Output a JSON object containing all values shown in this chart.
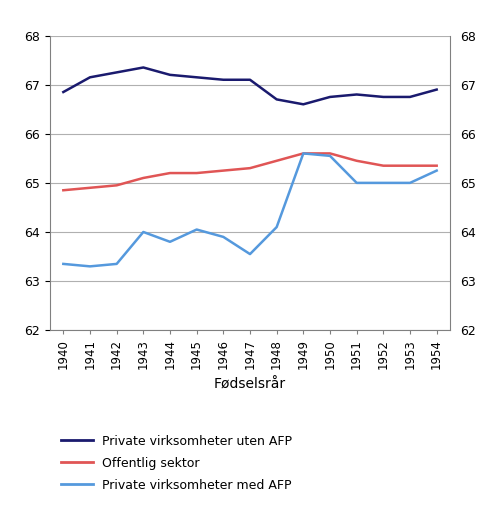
{
  "years": [
    1940,
    1941,
    1942,
    1943,
    1944,
    1945,
    1946,
    1947,
    1948,
    1949,
    1950,
    1951,
    1952,
    1953,
    1954
  ],
  "private_uten_afp": [
    66.85,
    67.15,
    67.25,
    67.35,
    67.2,
    67.15,
    67.1,
    67.1,
    66.7,
    66.6,
    66.75,
    66.8,
    66.75,
    66.75,
    66.9
  ],
  "offentlig_sektor": [
    64.85,
    64.9,
    64.95,
    65.1,
    65.2,
    65.2,
    65.25,
    65.3,
    65.45,
    65.6,
    65.6,
    65.45,
    65.35,
    65.35,
    65.35
  ],
  "private_med_afp": [
    63.35,
    63.3,
    63.35,
    64.0,
    63.8,
    64.05,
    63.9,
    63.55,
    64.1,
    65.6,
    65.55,
    65.0,
    65.0,
    65.0,
    65.25
  ],
  "line1_color": "#1a1a6e",
  "line2_color": "#e05555",
  "line3_color": "#5599dd",
  "ylim": [
    62,
    68
  ],
  "yticks": [
    62,
    63,
    64,
    65,
    66,
    67,
    68
  ],
  "legend1": "Private virksomheter uten AFP",
  "legend2": "Offentlig sektor",
  "legend3": "Private virksomheter med AFP",
  "background_color": "#ffffff",
  "grid_color": "#b0b0b0",
  "xlabel_full": "Fødselsrår"
}
